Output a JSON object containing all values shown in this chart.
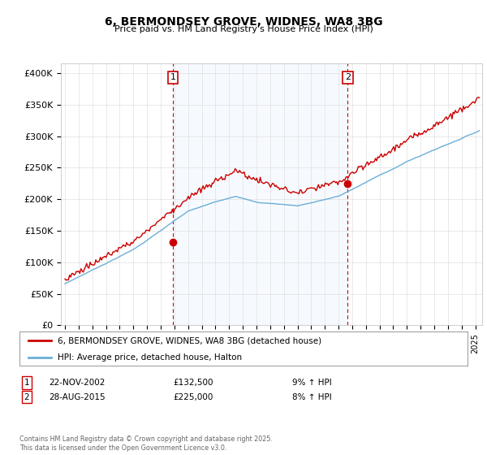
{
  "title": "6, BERMONDSEY GROVE, WIDNES, WA8 3BG",
  "subtitle": "Price paid vs. HM Land Registry's House Price Index (HPI)",
  "ylabel_ticks": [
    "£0",
    "£50K",
    "£100K",
    "£150K",
    "£200K",
    "£250K",
    "£300K",
    "£350K",
    "£400K"
  ],
  "ytick_values": [
    0,
    50000,
    100000,
    150000,
    200000,
    250000,
    300000,
    350000,
    400000
  ],
  "ylim": [
    0,
    415000
  ],
  "xlim_start": 1994.7,
  "xlim_end": 2025.5,
  "hpi_color": "#6baed6",
  "price_color": "#cc0000",
  "shade_color": "#ddeeff",
  "marker1_date": 2002.9,
  "marker1_price": 132500,
  "marker2_date": 2015.67,
  "marker2_price": 225000,
  "sale1_text": "22-NOV-2002",
  "sale1_amount": "£132,500",
  "sale1_hpi": "9% ↑ HPI",
  "sale2_text": "28-AUG-2015",
  "sale2_amount": "£225,000",
  "sale2_hpi": "8% ↑ HPI",
  "legend1": "6, BERMONDSEY GROVE, WIDNES, WA8 3BG (detached house)",
  "legend2": "HPI: Average price, detached house, Halton",
  "footer": "Contains HM Land Registry data © Crown copyright and database right 2025.\nThis data is licensed under the Open Government Licence v3.0.",
  "bg_color": "#ffffff",
  "grid_color": "#e0e0e0"
}
